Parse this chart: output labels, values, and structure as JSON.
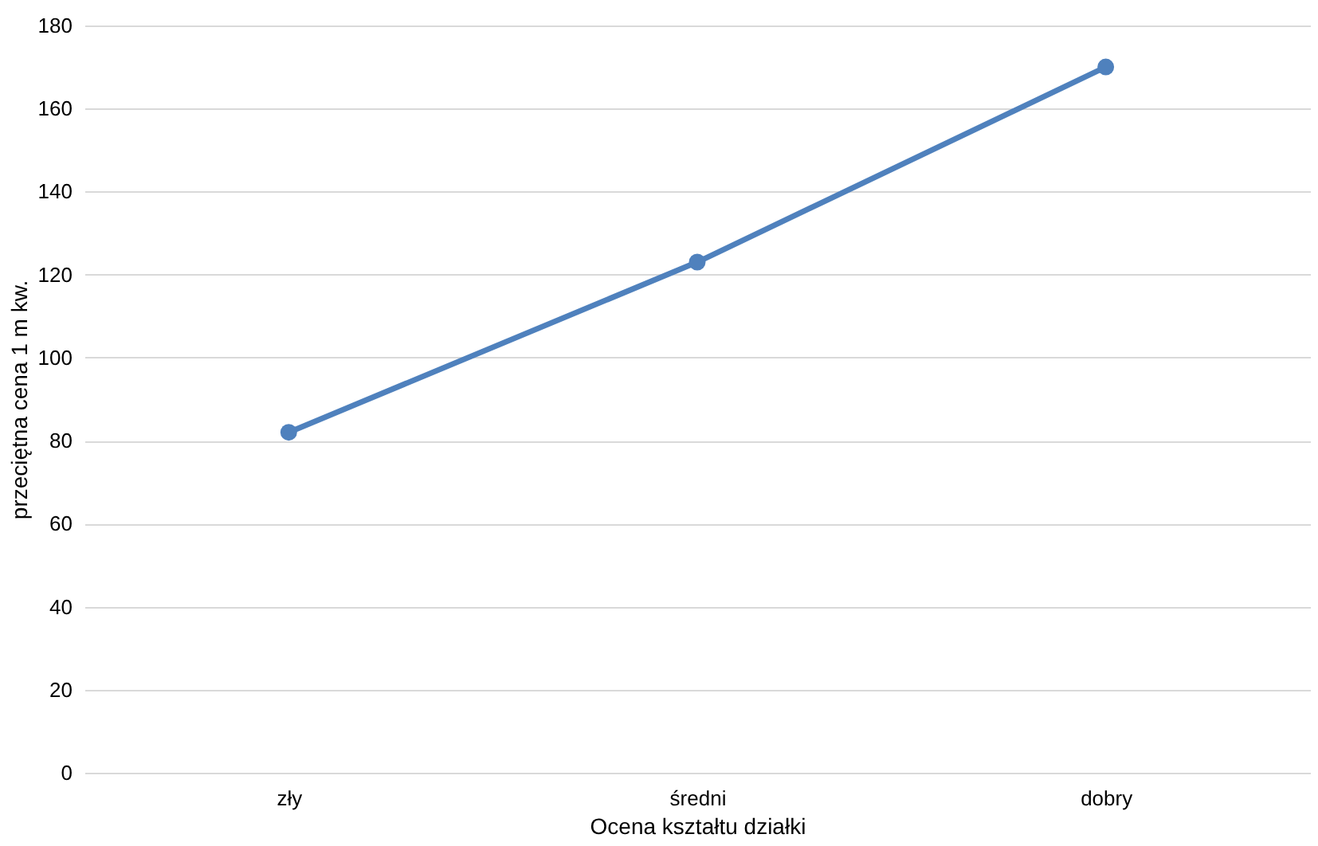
{
  "chart_data": {
    "type": "line",
    "xlabel": "Ocena kształtu działki",
    "ylabel": "przeciętna cena 1 m kw.",
    "categories": [
      "zły",
      "średni",
      "dobry"
    ],
    "series": [
      {
        "color": "#4f81bd",
        "values": [
          82,
          123,
          170
        ]
      }
    ],
    "ylim": [
      0,
      180
    ],
    "yticks": [
      0,
      20,
      40,
      60,
      80,
      100,
      120,
      140,
      160,
      180
    ],
    "grid": "y",
    "marker": "circle",
    "line_style": "solid"
  }
}
